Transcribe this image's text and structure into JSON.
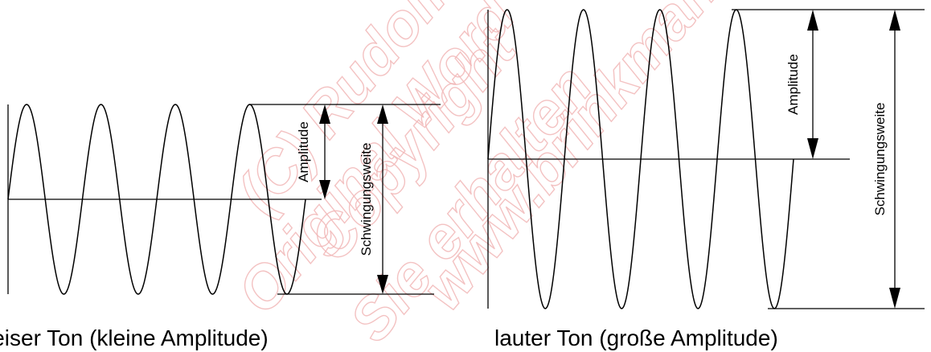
{
  "watermark": {
    "lines": [
      "(C) Rudolf",
      "Original Word",
      "Copyright",
      "Sie erhalten",
      "www.brinkmann"
    ]
  },
  "left_panel": {
    "amplitude_label": "Amplitude",
    "peak_to_peak_label": "Schwingungsweite",
    "caption": "leiser Ton (kleine Amplitude)",
    "cycles": 4,
    "relative_amplitude": 1
  },
  "right_panel": {
    "amplitude_label": "Amplitude",
    "peak_to_peak_label": "Schwingungsweite",
    "caption": "lauter Ton (große Amplitude)",
    "cycles": 4,
    "relative_amplitude": 1.6
  }
}
